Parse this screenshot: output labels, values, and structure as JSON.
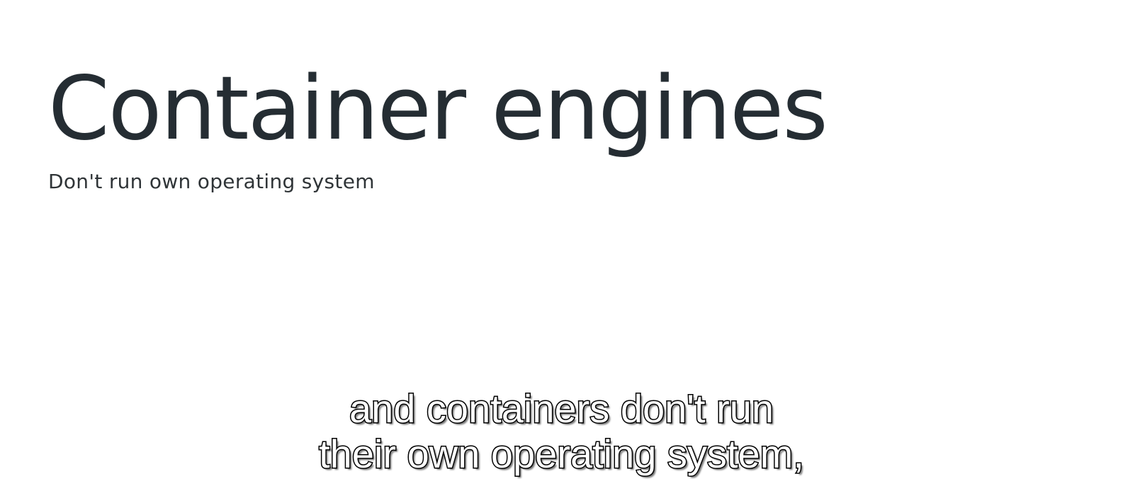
{
  "slide": {
    "title": "Container engines",
    "subtitle": "Don't run own operating system"
  },
  "caption": {
    "line1": "and containers don't run",
    "line2": "their own operating system,"
  },
  "colors": {
    "background": "#ffffff",
    "title": "#252d33",
    "subtitle": "#2f3437",
    "caption_fill": "#ffffff",
    "caption_outline": "#000000"
  }
}
